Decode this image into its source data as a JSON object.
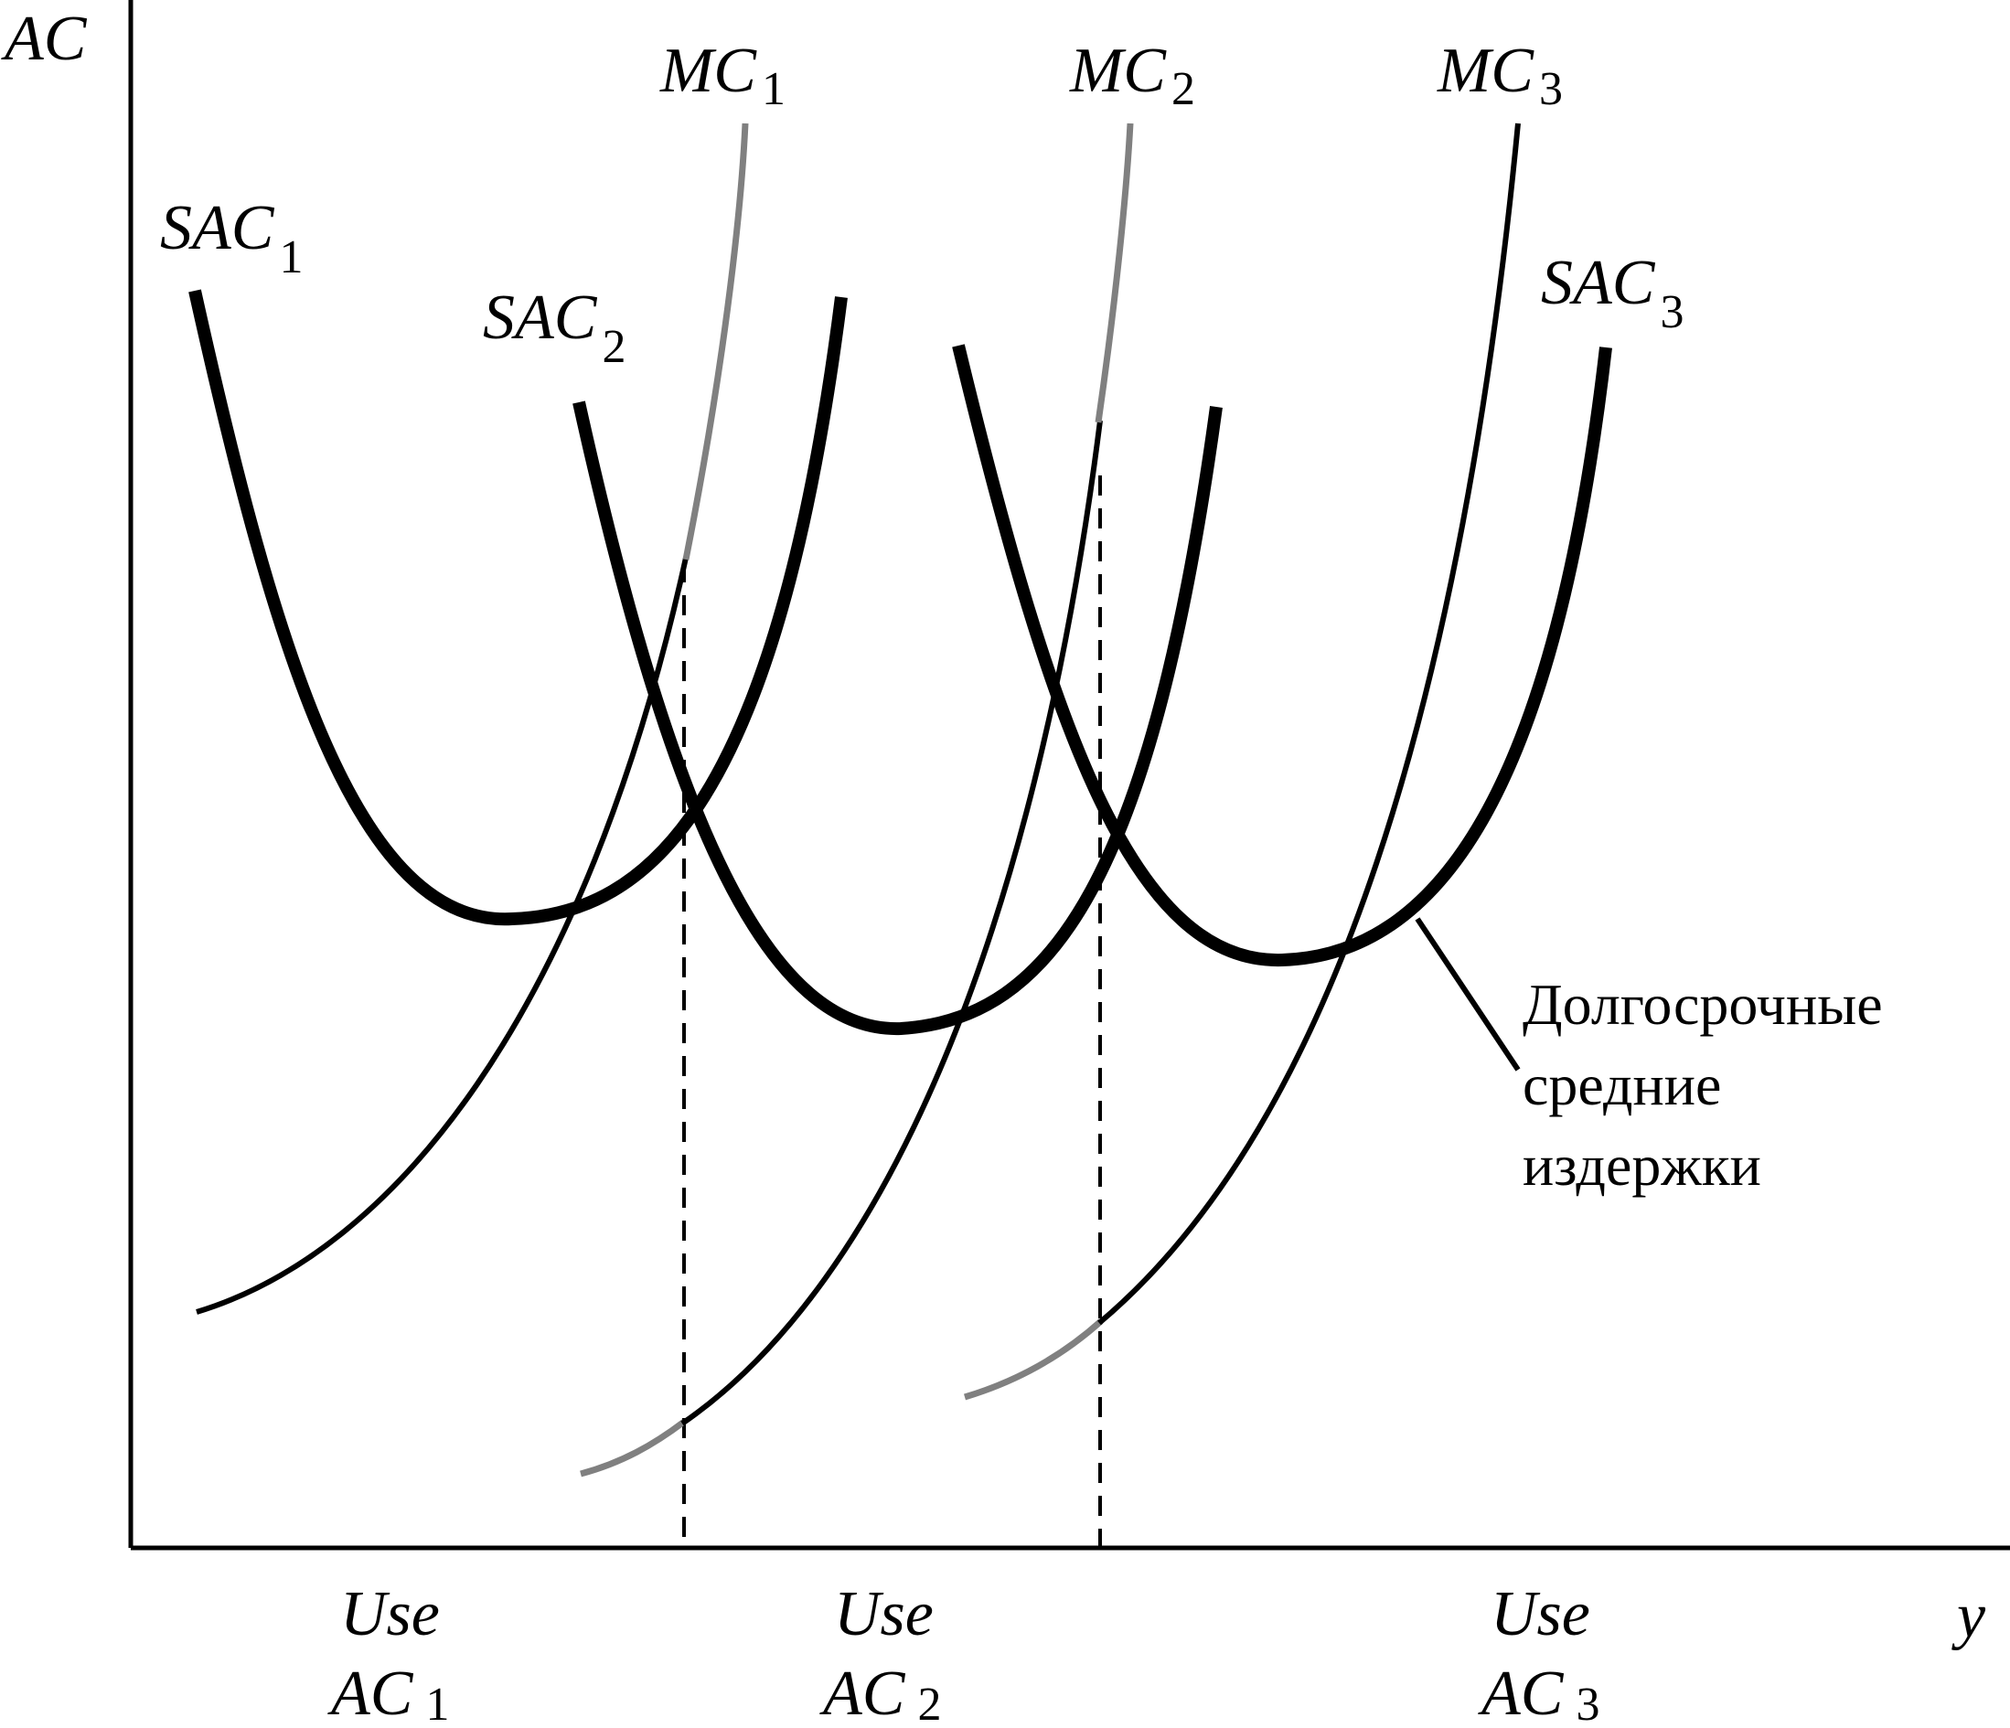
{
  "axes": {
    "y_label": "AC",
    "x_label": "y"
  },
  "curves": {
    "sac1": {
      "main": "SAC",
      "sub": "1"
    },
    "sac2": {
      "main": "SAC",
      "sub": "2"
    },
    "sac3": {
      "main": "SAC",
      "sub": "3"
    },
    "mc1": {
      "main": "MC",
      "sub": "1"
    },
    "mc2": {
      "main": "MC",
      "sub": "2"
    },
    "mc3": {
      "main": "MC",
      "sub": "3"
    }
  },
  "regions": [
    {
      "line1": "Use",
      "line2_main": "AC",
      "line2_sub": "1"
    },
    {
      "line1": "Use",
      "line2_main": "AC",
      "line2_sub": "2"
    },
    {
      "line1": "Use",
      "line2_main": "AC",
      "line2_sub": "3"
    }
  ],
  "annotation": {
    "lines": [
      "Долгосрочные",
      "средние",
      "издержки"
    ]
  },
  "colors": {
    "curve": "#000000",
    "mc_outside_segment": "#808080"
  }
}
